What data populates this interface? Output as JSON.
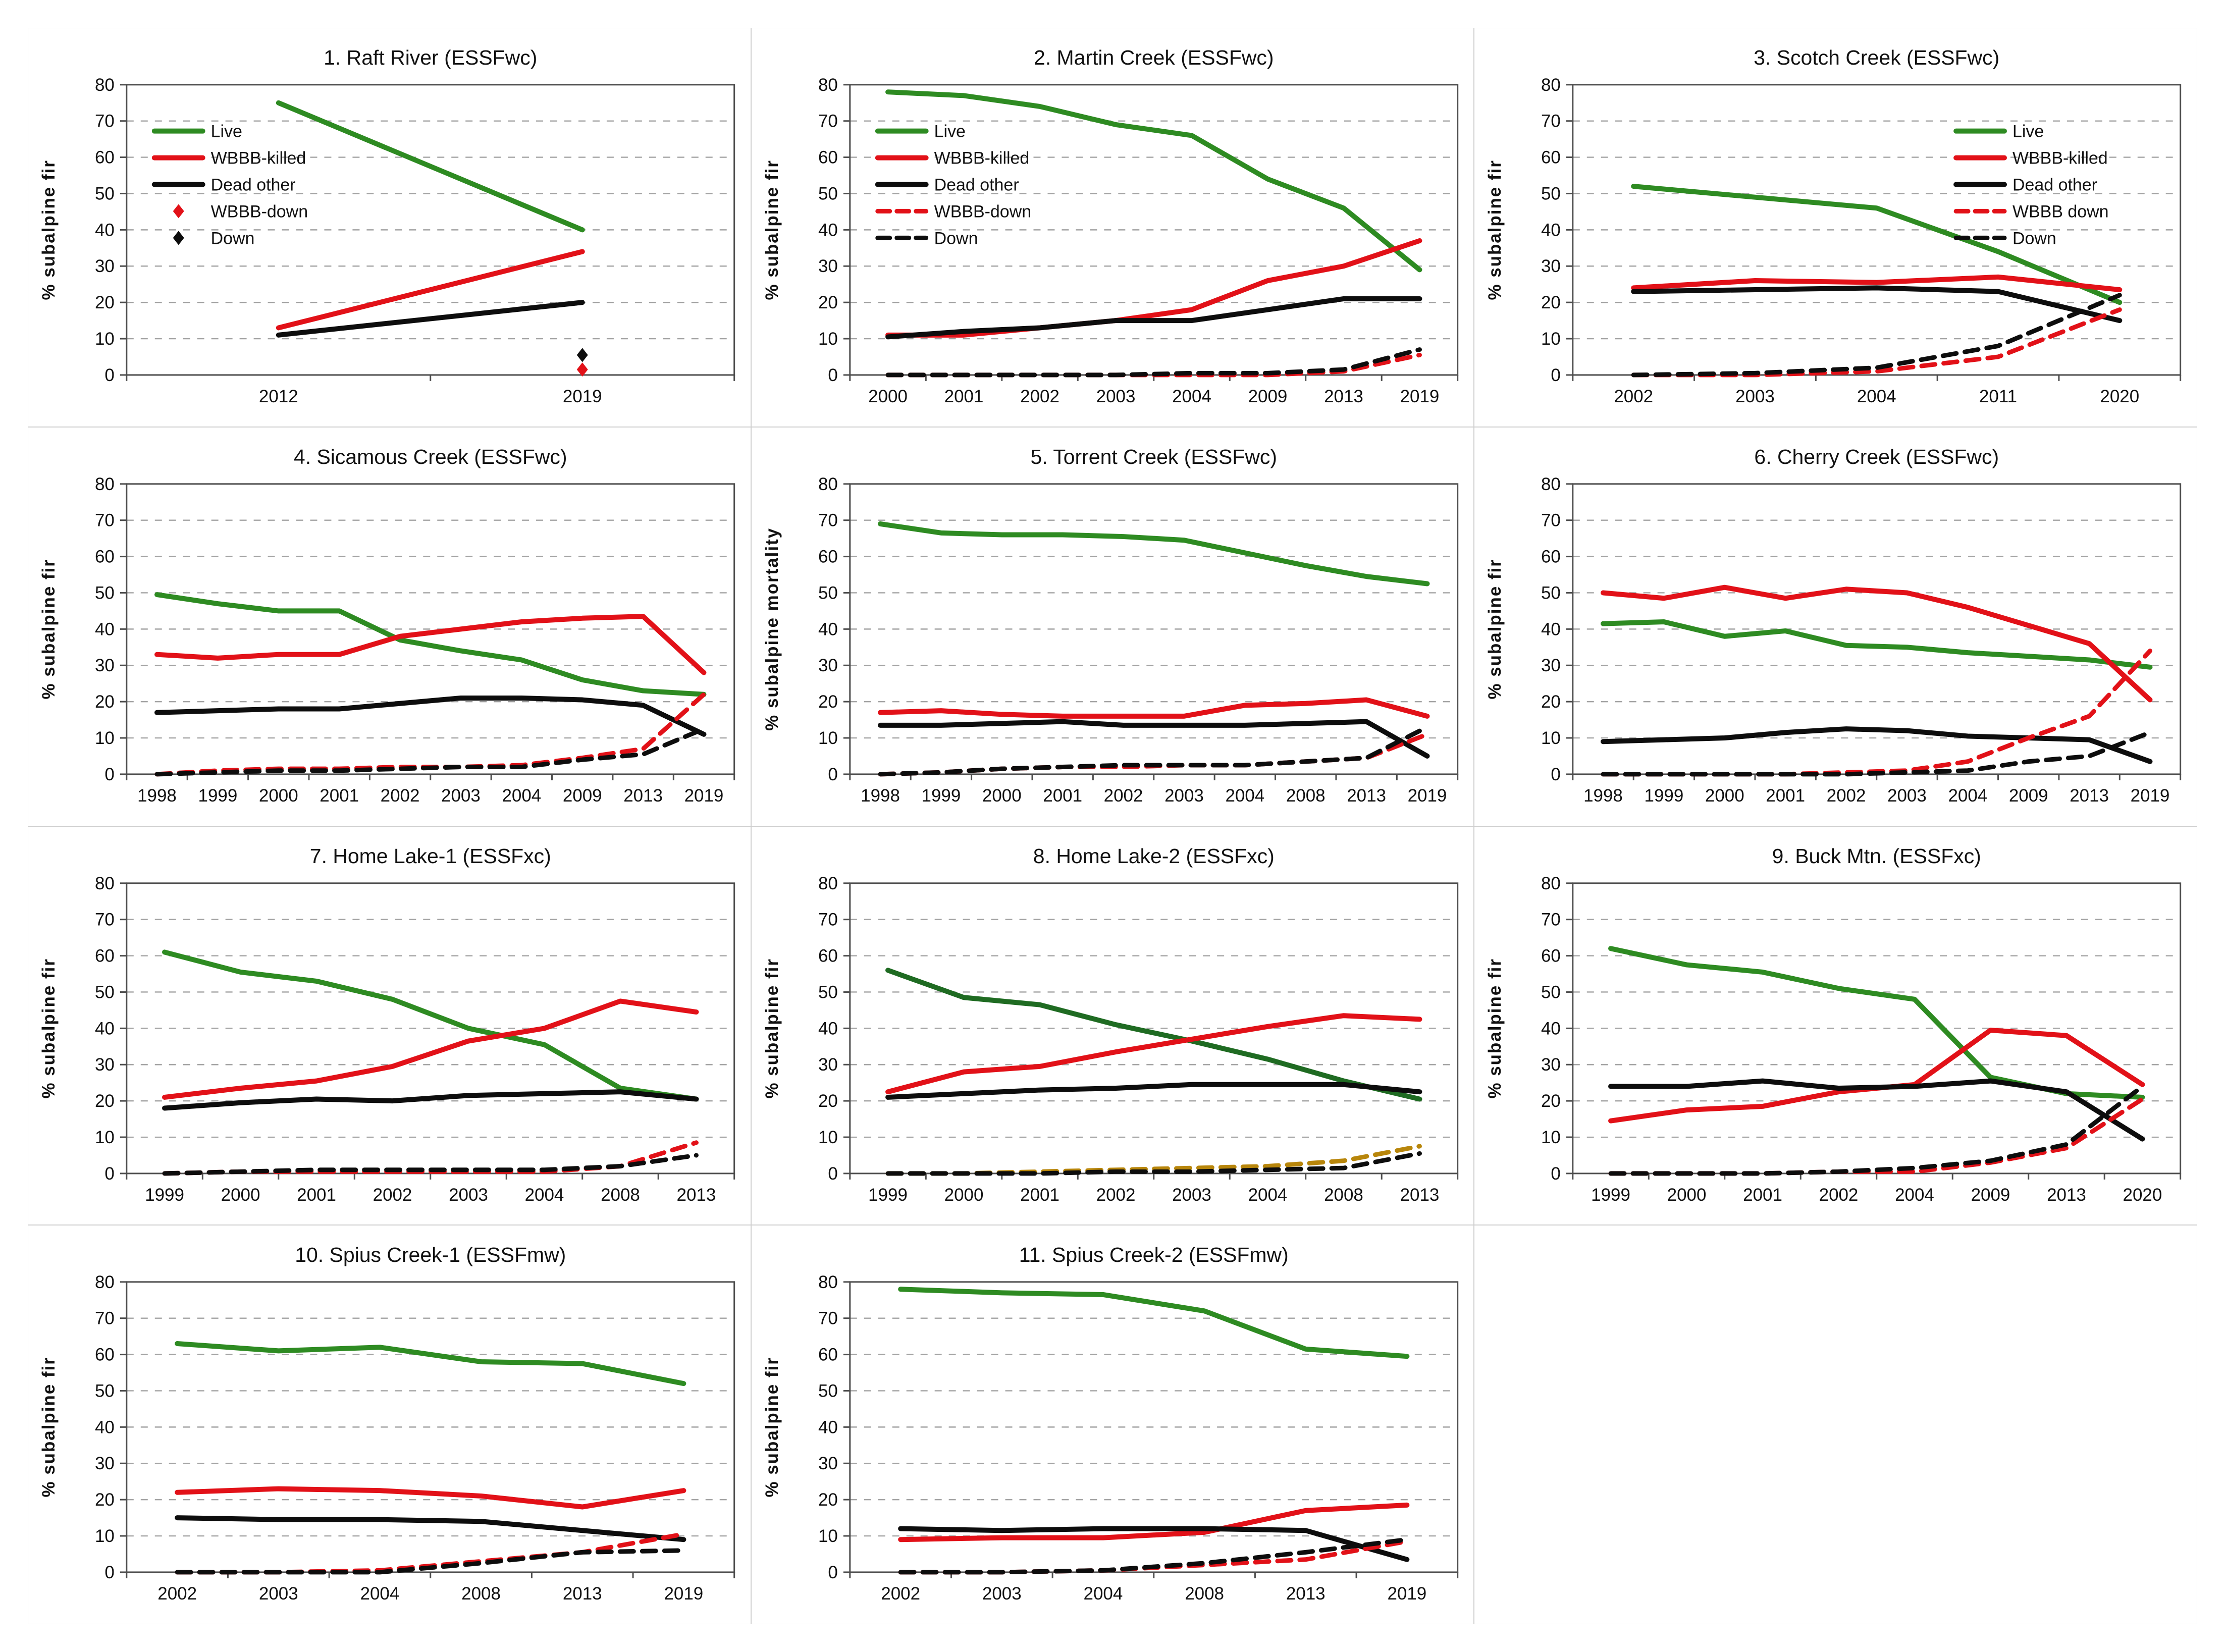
{
  "figure": {
    "background": "#ffffff",
    "panel_border_color": "#cfcfcf",
    "plot_border_color": "#4d4d4d",
    "gridline_color": "#a3a3a3",
    "text_color": "#111111",
    "ylabel_default": "% subalpine fir",
    "yticks": [
      0,
      10,
      20,
      30,
      40,
      50,
      60,
      70,
      80
    ]
  },
  "chart_data": [
    {
      "type": "line",
      "title": "1. Raft River (ESSFwc)",
      "ylabel": "% subalpine fir",
      "ylim": [
        0,
        80
      ],
      "grid": true,
      "legend": {
        "show": true,
        "position": "topleft"
      },
      "categories": [
        "2012",
        "2019"
      ],
      "series": [
        {
          "name": "Live",
          "color": "#2e8b22",
          "style": "solid",
          "values": [
            75,
            40
          ]
        },
        {
          "name": "WBBB-killed",
          "color": "#e21118",
          "style": "solid",
          "values": [
            13,
            34
          ]
        },
        {
          "name": "Dead other",
          "color": "#0d0d0d",
          "style": "solid",
          "values": [
            11,
            20
          ]
        },
        {
          "name": "WBBB-down",
          "color": "#e21118",
          "style": "marker",
          "values": [
            null,
            1.5
          ]
        },
        {
          "name": "Down",
          "color": "#0d0d0d",
          "style": "marker",
          "values": [
            null,
            5.5
          ]
        }
      ]
    },
    {
      "type": "line",
      "title": "2. Martin Creek (ESSFwc)",
      "ylabel": "% subalpine fir",
      "ylim": [
        0,
        80
      ],
      "grid": true,
      "legend": {
        "show": true,
        "position": "topleft"
      },
      "categories": [
        "2000",
        "2001",
        "2002",
        "2003",
        "2004",
        "2009",
        "2013",
        "2019"
      ],
      "series": [
        {
          "name": "Live",
          "color": "#2e8b22",
          "style": "solid",
          "values": [
            78,
            77,
            74,
            69,
            66,
            54,
            46,
            29
          ]
        },
        {
          "name": "WBBB-killed",
          "color": "#e21118",
          "style": "solid",
          "values": [
            11,
            11,
            13,
            15,
            18,
            26,
            30,
            37
          ]
        },
        {
          "name": "Dead other",
          "color": "#0d0d0d",
          "style": "solid",
          "values": [
            10.5,
            12,
            13,
            15,
            15,
            18,
            21,
            21
          ]
        },
        {
          "name": "WBBB-down",
          "color": "#e21118",
          "style": "dashed",
          "values": [
            0,
            0,
            0,
            0,
            0,
            0,
            1,
            5.5
          ]
        },
        {
          "name": "Down",
          "color": "#0d0d0d",
          "style": "dashed",
          "values": [
            0,
            0,
            0,
            0,
            0.5,
            0.5,
            1.5,
            7
          ]
        }
      ]
    },
    {
      "type": "line",
      "title": "3. Scotch Creek (ESSFwc)",
      "ylabel": "% subalpine fir",
      "ylim": [
        0,
        80
      ],
      "grid": true,
      "legend": {
        "show": true,
        "position": "topright"
      },
      "categories": [
        "2002",
        "2003",
        "2004",
        "2011",
        "2020"
      ],
      "series": [
        {
          "name": "Live",
          "color": "#2e8b22",
          "style": "solid",
          "values": [
            52,
            49,
            46,
            34,
            20
          ]
        },
        {
          "name": "WBBB-killed",
          "color": "#e21118",
          "style": "solid",
          "values": [
            24,
            26,
            25.5,
            27,
            23.5
          ]
        },
        {
          "name": "Dead other",
          "color": "#0d0d0d",
          "style": "solid",
          "values": [
            23,
            23.5,
            24,
            23,
            15
          ]
        },
        {
          "name": "WBBB down",
          "color": "#e21118",
          "style": "dashed",
          "values": [
            0,
            0,
            1,
            5,
            18
          ]
        },
        {
          "name": "Down",
          "color": "#0d0d0d",
          "style": "dashed",
          "values": [
            0,
            0.5,
            2,
            8,
            22
          ]
        }
      ]
    },
    {
      "type": "line",
      "title": "4. Sicamous Creek (ESSFwc)",
      "ylabel": "% subalpine fir",
      "ylim": [
        0,
        80
      ],
      "grid": true,
      "legend": {
        "show": false,
        "position": null
      },
      "categories": [
        "1998",
        "1999",
        "2000",
        "2001",
        "2002",
        "2003",
        "2004",
        "2009",
        "2013",
        "2019"
      ],
      "series": [
        {
          "name": "Live",
          "color": "#2e8b22",
          "style": "solid",
          "values": [
            49.5,
            47,
            45,
            45,
            37,
            34,
            31.5,
            26,
            23,
            22
          ]
        },
        {
          "name": "WBBB-killed",
          "color": "#e21118",
          "style": "solid",
          "values": [
            33,
            32,
            33,
            33,
            38,
            40,
            42,
            43,
            43.5,
            28
          ]
        },
        {
          "name": "Dead other",
          "color": "#0d0d0d",
          "style": "solid",
          "values": [
            17,
            17.5,
            18,
            18,
            19.5,
            21,
            21,
            20.5,
            19,
            11
          ]
        },
        {
          "name": "WBBB-down",
          "color": "#e21118",
          "style": "dashed",
          "values": [
            0,
            1,
            1.5,
            1.5,
            2,
            2,
            2.5,
            4.5,
            7,
            22
          ]
        },
        {
          "name": "Down",
          "color": "#0d0d0d",
          "style": "dashed",
          "values": [
            0,
            0.5,
            1,
            1,
            1.5,
            2,
            2,
            4,
            5.5,
            12.5
          ]
        }
      ]
    },
    {
      "type": "line",
      "title": "5. Torrent Creek (ESSFwc)",
      "ylabel": "% subalpine mortality",
      "ylim": [
        0,
        80
      ],
      "grid": true,
      "legend": {
        "show": false,
        "position": null
      },
      "categories": [
        "1998",
        "1999",
        "2000",
        "2001",
        "2002",
        "2003",
        "2004",
        "2008",
        "2013",
        "2019"
      ],
      "series": [
        {
          "name": "Live",
          "color": "#2e8b22",
          "style": "solid",
          "values": [
            69,
            66.5,
            66,
            66,
            65.5,
            64.5,
            61,
            57.5,
            54.5,
            52.5
          ]
        },
        {
          "name": "WBBB-killed",
          "color": "#e21118",
          "style": "solid",
          "values": [
            17,
            17.5,
            16.5,
            16,
            16,
            16,
            19,
            19.5,
            20.5,
            16
          ]
        },
        {
          "name": "Dead other",
          "color": "#0d0d0d",
          "style": "solid",
          "values": [
            13.5,
            13.5,
            14,
            14.5,
            13.5,
            13.5,
            13.5,
            14,
            14.5,
            5
          ]
        },
        {
          "name": "WBBB-down",
          "color": "#e21118",
          "style": "dashed",
          "values": [
            0,
            0.5,
            1.5,
            2,
            2,
            2.5,
            2.5,
            3.5,
            4.5,
            11
          ]
        },
        {
          "name": "Down",
          "color": "#0d0d0d",
          "style": "dashed",
          "values": [
            0,
            0.5,
            1.5,
            2,
            2.5,
            2.5,
            2.5,
            3.5,
            4.5,
            13
          ]
        }
      ]
    },
    {
      "type": "line",
      "title": "6. Cherry Creek (ESSFwc)",
      "ylabel": "% subalpine fir",
      "ylim": [
        0,
        80
      ],
      "grid": true,
      "legend": {
        "show": false,
        "position": null
      },
      "categories": [
        "1998",
        "1999",
        "2000",
        "2001",
        "2002",
        "2003",
        "2004",
        "2009",
        "2013",
        "2019"
      ],
      "series": [
        {
          "name": "Live",
          "color": "#2e8b22",
          "style": "solid",
          "values": [
            41.5,
            42,
            38,
            39.5,
            35.5,
            35,
            33.5,
            32.5,
            31.5,
            29.5
          ]
        },
        {
          "name": "WBBB-killed",
          "color": "#e21118",
          "style": "solid",
          "values": [
            50,
            48.5,
            51.5,
            48.5,
            51,
            50,
            46,
            41,
            36,
            20.5
          ]
        },
        {
          "name": "Dead other",
          "color": "#0d0d0d",
          "style": "solid",
          "values": [
            9,
            9.5,
            10,
            11.5,
            12.5,
            12,
            10.5,
            10,
            9.5,
            3.5
          ]
        },
        {
          "name": "WBBB-down",
          "color": "#e21118",
          "style": "dashed",
          "values": [
            0,
            0,
            0,
            0,
            0.5,
            1,
            3.5,
            10,
            16,
            34
          ]
        },
        {
          "name": "Down",
          "color": "#0d0d0d",
          "style": "dashed",
          "values": [
            0,
            0,
            0,
            0,
            0,
            0.5,
            1,
            3.5,
            5,
            11.5
          ]
        }
      ]
    },
    {
      "type": "line",
      "title": "7. Home Lake-1 (ESSFxc)",
      "ylabel": "% subalpine fir",
      "ylim": [
        0,
        80
      ],
      "grid": true,
      "legend": {
        "show": false,
        "position": null
      },
      "categories": [
        "1999",
        "2000",
        "2001",
        "2002",
        "2003",
        "2004",
        "2008",
        "2013"
      ],
      "series": [
        {
          "name": "Live",
          "color": "#2e8b22",
          "style": "solid",
          "values": [
            61,
            55.5,
            53,
            48,
            40,
            35.5,
            23.5,
            20.5
          ]
        },
        {
          "name": "WBBB-killed",
          "color": "#e21118",
          "style": "solid",
          "values": [
            21,
            23.5,
            25.5,
            29.5,
            36.5,
            40,
            47.5,
            44.5
          ]
        },
        {
          "name": "Dead other",
          "color": "#0d0d0d",
          "style": "solid",
          "values": [
            18,
            19.5,
            20.5,
            20,
            21.5,
            22,
            22.5,
            20.5
          ]
        },
        {
          "name": "WBBB-down",
          "color": "#e21118",
          "style": "dashed",
          "values": [
            0,
            0.5,
            0.5,
            0.5,
            0.5,
            0.5,
            2,
            8.5
          ]
        },
        {
          "name": "Down",
          "color": "#0d0d0d",
          "style": "dashed",
          "values": [
            0,
            0.5,
            1,
            1,
            1,
            1,
            2,
            5
          ]
        }
      ]
    },
    {
      "type": "line",
      "title": "8. Home Lake-2 (ESSFxc)",
      "ylabel": "% subalpine fir",
      "ylim": [
        0,
        80
      ],
      "grid": true,
      "legend": {
        "show": false,
        "position": null
      },
      "categories": [
        "1999",
        "2000",
        "2001",
        "2002",
        "2003",
        "2004",
        "2008",
        "2013"
      ],
      "series": [
        {
          "name": "Live",
          "color": "#1f6b22",
          "style": "solid",
          "values": [
            56,
            48.5,
            46.5,
            41,
            36.5,
            31.5,
            25.5,
            20.5
          ]
        },
        {
          "name": "WBBB-killed",
          "color": "#e21118",
          "style": "solid",
          "values": [
            22.5,
            28,
            29.5,
            33.5,
            37,
            40.5,
            43.5,
            42.5
          ]
        },
        {
          "name": "Dead other",
          "color": "#0d0d0d",
          "style": "solid",
          "values": [
            21,
            22,
            23,
            23.5,
            24.5,
            24.5,
            24.5,
            22.5
          ]
        },
        {
          "name": "WBBB-down",
          "color": "#b8860b",
          "style": "dashed",
          "values": [
            0,
            0,
            0.5,
            1,
            1.5,
            2,
            3.5,
            7.5
          ]
        },
        {
          "name": "Down",
          "color": "#0d0d0d",
          "style": "dashed",
          "values": [
            0,
            0,
            0,
            0.5,
            0.5,
            1,
            1.5,
            5.5
          ]
        }
      ]
    },
    {
      "type": "line",
      "title": "9. Buck Mtn. (ESSFxc)",
      "ylabel": "% subalpine fir",
      "ylim": [
        0,
        80
      ],
      "grid": true,
      "legend": {
        "show": false,
        "position": null
      },
      "categories": [
        "1999",
        "2000",
        "2001",
        "2002",
        "2004",
        "2009",
        "2013",
        "2020"
      ],
      "series": [
        {
          "name": "Live",
          "color": "#2e8b22",
          "style": "solid",
          "values": [
            62,
            57.5,
            55.5,
            51,
            48,
            26.5,
            22,
            21
          ]
        },
        {
          "name": "WBBB-killed",
          "color": "#e21118",
          "style": "solid",
          "values": [
            14.5,
            17.5,
            18.5,
            22.5,
            24.5,
            39.5,
            38,
            24.5
          ]
        },
        {
          "name": "Dead other",
          "color": "#0d0d0d",
          "style": "solid",
          "values": [
            24,
            24,
            25.5,
            23.5,
            24,
            25.5,
            22.5,
            9.5
          ]
        },
        {
          "name": "WBBB-down",
          "color": "#e21118",
          "style": "dashed",
          "values": [
            0,
            0,
            0,
            0.5,
            0.5,
            3,
            7,
            20.5
          ]
        },
        {
          "name": "Down",
          "color": "#0d0d0d",
          "style": "dashed",
          "values": [
            0,
            0,
            0,
            0.5,
            1.5,
            3.5,
            8,
            24
          ]
        }
      ]
    },
    {
      "type": "line",
      "title": "10. Spius Creek-1 (ESSFmw)",
      "ylabel": "% subalpine fir",
      "ylim": [
        0,
        80
      ],
      "grid": true,
      "legend": {
        "show": false,
        "position": null
      },
      "categories": [
        "2002",
        "2003",
        "2004",
        "2008",
        "2013",
        "2019"
      ],
      "series": [
        {
          "name": "Live",
          "color": "#2e8b22",
          "style": "solid",
          "values": [
            63,
            61,
            62,
            58,
            57.5,
            52
          ]
        },
        {
          "name": "WBBB-killed",
          "color": "#e21118",
          "style": "solid",
          "values": [
            22,
            23,
            22.5,
            21,
            18,
            22.5
          ]
        },
        {
          "name": "Dead other",
          "color": "#0d0d0d",
          "style": "solid",
          "values": [
            15,
            14.5,
            14.5,
            14,
            11.5,
            9
          ]
        },
        {
          "name": "WBBB-down",
          "color": "#e21118",
          "style": "dashed",
          "values": [
            0,
            0,
            0.5,
            3,
            5.5,
            10.5
          ]
        },
        {
          "name": "Down",
          "color": "#0d0d0d",
          "style": "dashed",
          "values": [
            0,
            0,
            0,
            2.5,
            5.5,
            6
          ]
        }
      ]
    },
    {
      "type": "line",
      "title": "11. Spius Creek-2 (ESSFmw)",
      "ylabel": "% subalpine fir",
      "ylim": [
        0,
        80
      ],
      "grid": true,
      "legend": {
        "show": false,
        "position": null
      },
      "categories": [
        "2002",
        "2003",
        "2004",
        "2008",
        "2013",
        "2019"
      ],
      "series": [
        {
          "name": "Live",
          "color": "#2e8b22",
          "style": "solid",
          "values": [
            78,
            77,
            76.5,
            72,
            61.5,
            59.5
          ]
        },
        {
          "name": "WBBB-killed",
          "color": "#e21118",
          "style": "solid",
          "values": [
            9,
            9.5,
            9.5,
            11,
            17,
            18.5
          ]
        },
        {
          "name": "Dead other",
          "color": "#0d0d0d",
          "style": "solid",
          "values": [
            12,
            11.5,
            12,
            12,
            11.5,
            3.5
          ]
        },
        {
          "name": "WBBB-down",
          "color": "#e21118",
          "style": "dashed",
          "values": [
            0,
            0,
            0.5,
            2,
            3.5,
            8.5
          ]
        },
        {
          "name": "Down",
          "color": "#0d0d0d",
          "style": "dashed",
          "values": [
            0,
            0,
            0.5,
            2.5,
            5.5,
            9
          ]
        }
      ]
    }
  ]
}
